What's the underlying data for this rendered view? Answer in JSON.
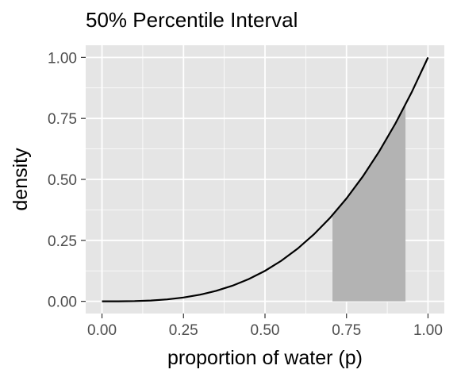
{
  "chart_data": {
    "type": "area",
    "title": "50% Percentile Interval",
    "xlabel": "proportion of water (p)",
    "ylabel": "density",
    "xlim": [
      -0.05,
      1.05
    ],
    "ylim": [
      -0.05,
      1.05
    ],
    "x_ticks": [
      0,
      0.25,
      0.5,
      0.75,
      1
    ],
    "x_tick_labels": [
      "0.00",
      "0.25",
      "0.50",
      "0.75",
      "1.00"
    ],
    "y_ticks": [
      0,
      0.25,
      0.5,
      0.75,
      1
    ],
    "y_tick_labels": [
      "0.00",
      "0.25",
      "0.50",
      "0.75",
      "1.00"
    ],
    "curve": {
      "x": [
        0,
        0.05,
        0.1,
        0.15,
        0.2,
        0.25,
        0.3,
        0.35,
        0.4,
        0.45,
        0.5,
        0.55,
        0.6,
        0.65,
        0.7,
        0.75,
        0.8,
        0.85,
        0.9,
        0.95,
        1.0
      ],
      "y": [
        0,
        0.0001,
        0.001,
        0.0034,
        0.008,
        0.0156,
        0.027,
        0.0429,
        0.064,
        0.0911,
        0.125,
        0.1664,
        0.216,
        0.2746,
        0.343,
        0.4219,
        0.512,
        0.6141,
        0.729,
        0.8574,
        1.0
      ],
      "color": "#000000"
    },
    "interval": {
      "low": 0.707,
      "high": 0.931,
      "fill": "#b3b3b3"
    },
    "panel_background": "#e5e5e5",
    "grid": true,
    "grid_color": "#ffffff"
  }
}
